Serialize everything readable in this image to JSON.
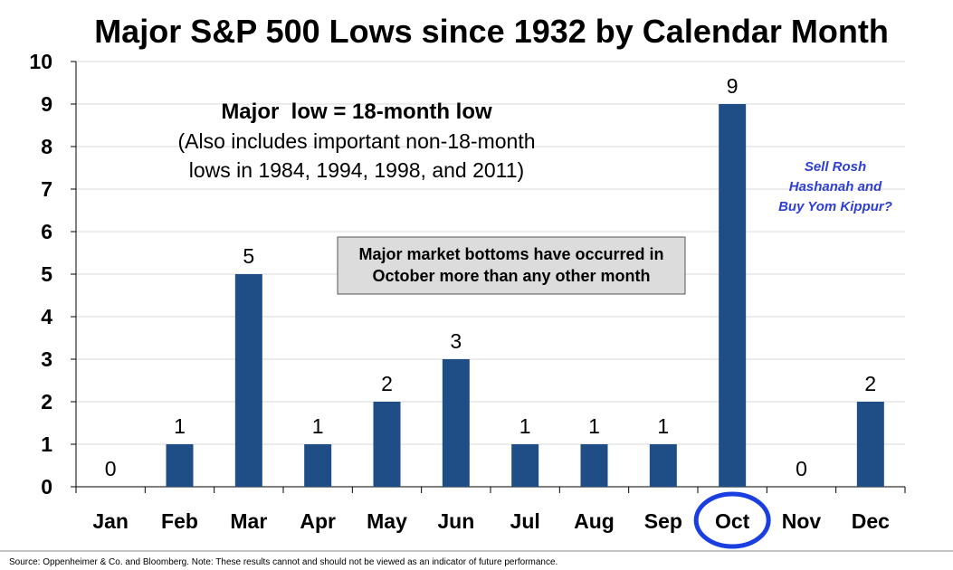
{
  "chart_data": {
    "type": "bar",
    "title": "Major S&P 500 Lows since 1932 by Calendar Month",
    "categories": [
      "Jan",
      "Feb",
      "Mar",
      "Apr",
      "May",
      "Jun",
      "Jul",
      "Aug",
      "Sep",
      "Oct",
      "Nov",
      "Dec"
    ],
    "values": [
      0,
      1,
      5,
      1,
      2,
      3,
      1,
      1,
      1,
      9,
      0,
      2
    ],
    "ylim": [
      0,
      10
    ],
    "yticks": [
      0,
      1,
      2,
      3,
      4,
      5,
      6,
      7,
      8,
      9,
      10
    ],
    "xlabel": "",
    "ylabel": "",
    "grid": true,
    "legend": "none",
    "bar_color": "#1f4e86",
    "highlight_category": "Oct",
    "highlight_color": "#1a3fe0"
  },
  "annotations": {
    "definition_title": "Major  low = 18-month low",
    "definition_line1": "(Also includes important non-18-month",
    "definition_line2": "lows in 1984, 1994, 1998, and 2011)",
    "callout_line1": "Major market bottoms have occurred in",
    "callout_line2": "October more than any other month",
    "sell_line1": "Sell Rosh",
    "sell_line2": "Hashanah and",
    "sell_line3": "Buy Yom Kippur?"
  },
  "footer": {
    "source": "Source:  Oppenheimer & Co. and Bloomberg.  Note: These results cannot and should not be viewed as an indicator of future performance."
  }
}
